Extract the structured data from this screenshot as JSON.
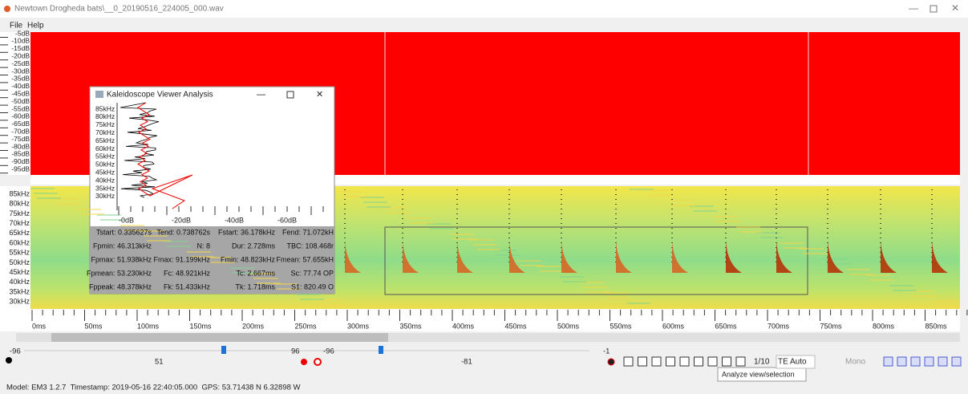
{
  "window": {
    "title": "Newtown Drogheda bats\\__0_20190516_224005_000.wav",
    "menu": [
      "File",
      "Help"
    ]
  },
  "amplitude_axis": [
    "-5dB",
    "-10dB",
    "-15dB",
    "-20dB",
    "-25dB",
    "-30dB",
    "-35dB",
    "-40dB",
    "-45dB",
    "-50dB",
    "-55dB",
    "-60dB",
    "-65dB",
    "-70dB",
    "-75dB",
    "-80dB",
    "-85dB",
    "-90dB",
    "-95dB"
  ],
  "frequency_axis": [
    "85kHz",
    "80kHz",
    "75kHz",
    "70kHz",
    "65kHz",
    "60kHz",
    "55kHz",
    "50kHz",
    "45kHz",
    "40kHz",
    "35kHz",
    "30kHz"
  ],
  "time_axis": [
    "0ms",
    "50ms",
    "100ms",
    "150ms",
    "200ms",
    "250ms",
    "300ms",
    "350ms",
    "400ms",
    "450ms",
    "500ms",
    "550ms",
    "600ms",
    "650ms",
    "700ms",
    "750ms",
    "800ms",
    "850ms"
  ],
  "dialog": {
    "title": "Kaleidoscope Viewer Analysis",
    "frequency_axis": [
      "85kHz",
      "80kHz",
      "75kHz",
      "70kHz",
      "65kHz",
      "60kHz",
      "55kHz",
      "50kHz",
      "45kHz",
      "40kHz",
      "35kHz",
      "30kHz"
    ],
    "amplitude_axis": [
      "-0dB",
      "-20dB",
      "-40dB",
      "-60dB"
    ],
    "stats": [
      [
        "Tstart: 0.335627s",
        "Tend: 0.738762s",
        "Fstart: 36.178kHz",
        "Fend: 71.072kH"
      ],
      [
        "Fpmin: 46.313kHz",
        "N: 8",
        "Dur: 2.728ms",
        "TBC: 108.468r"
      ],
      [
        "Fpmax: 51.938kHz",
        "Fmax: 91.199kHz",
        "Fmin: 48.823kHz",
        "Fmean: 57.655kH"
      ],
      [
        "Fpmean: 53.230kHz",
        "Fc: 48.921kHz",
        "Tc: 2.667ms",
        "Sc: 77.74 OP"
      ],
      [
        "Fppeak: 48.378kHz",
        "Fk: 51.433kHz",
        "Tk: 1.718ms",
        "S1: 820.49 O"
      ]
    ]
  },
  "controls": {
    "left_min": -96,
    "left_value": 51,
    "left_max": 96,
    "right_min": -96,
    "right_value": -81,
    "right_max": -1,
    "rate": "1/10",
    "mode": "TE Auto",
    "channel": "Mono",
    "tooltip": "Analyze view/selection"
  },
  "status": "Model: EM3 1.2.7  Timestamp: 2019-05-16 22:40:05.000  GPS: 53.71438 N 6.32898 W"
}
